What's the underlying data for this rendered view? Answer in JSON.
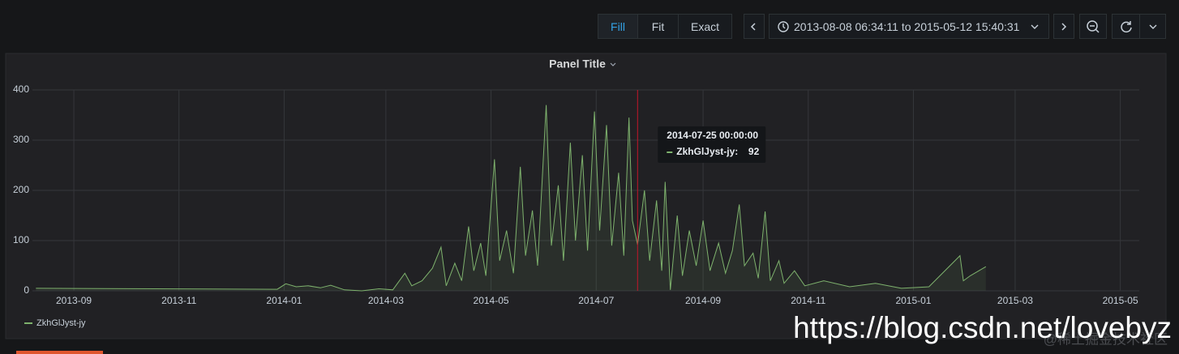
{
  "toolbar": {
    "modes": [
      "Fill",
      "Fit",
      "Exact"
    ],
    "time_range": "2013-08-08 06:34:11 to 2015-05-12 15:40:31"
  },
  "chart_data": {
    "type": "line",
    "title": "Panel Title",
    "x": [
      "2013-08-10",
      "2013-12-28",
      "2014-01-02",
      "2014-01-08",
      "2014-01-15",
      "2014-01-22",
      "2014-01-28",
      "2014-02-05",
      "2014-02-15",
      "2014-02-25",
      "2014-03-05",
      "2014-03-12",
      "2014-03-16",
      "2014-03-22",
      "2014-03-28",
      "2014-04-02",
      "2014-04-05",
      "2014-04-10",
      "2014-04-14",
      "2014-04-18",
      "2014-04-21",
      "2014-04-25",
      "2014-04-28",
      "2014-05-03",
      "2014-05-06",
      "2014-05-10",
      "2014-05-14",
      "2014-05-18",
      "2014-05-21",
      "2014-05-25",
      "2014-05-28",
      "2014-06-02",
      "2014-06-05",
      "2014-06-09",
      "2014-06-12",
      "2014-06-16",
      "2014-06-19",
      "2014-06-23",
      "2014-06-26",
      "2014-06-30",
      "2014-07-03",
      "2014-07-07",
      "2014-07-10",
      "2014-07-14",
      "2014-07-17",
      "2014-07-20",
      "2014-07-22",
      "2014-07-25",
      "2014-07-29",
      "2014-08-01",
      "2014-08-05",
      "2014-08-08",
      "2014-08-10",
      "2014-08-13",
      "2014-08-17",
      "2014-08-20",
      "2014-08-24",
      "2014-08-28",
      "2014-09-01",
      "2014-09-05",
      "2014-09-10",
      "2014-09-14",
      "2014-09-18",
      "2014-09-22",
      "2014-09-25",
      "2014-09-30",
      "2014-10-03",
      "2014-10-07",
      "2014-10-10",
      "2014-10-15",
      "2014-10-18",
      "2014-10-24",
      "2014-10-30",
      "2014-11-10",
      "2014-11-25",
      "2014-12-10",
      "2014-12-25",
      "2015-01-10",
      "2015-01-28",
      "2015-01-30",
      "2015-02-03",
      "2015-02-12"
    ],
    "series": [
      {
        "name": "ZkhGlJyst-jy",
        "color": "#7eb26d",
        "values": [
          5,
          3,
          14,
          8,
          10,
          6,
          11,
          2,
          0,
          4,
          2,
          35,
          10,
          20,
          45,
          87,
          10,
          55,
          20,
          128,
          40,
          95,
          30,
          262,
          60,
          120,
          35,
          247,
          70,
          160,
          50,
          370,
          90,
          210,
          60,
          295,
          100,
          270,
          80,
          357,
          120,
          330,
          90,
          235,
          70,
          345,
          140,
          92,
          200,
          60,
          180,
          40,
          217,
          2,
          150,
          30,
          120,
          50,
          140,
          40,
          95,
          35,
          80,
          172,
          50,
          75,
          25,
          158,
          20,
          60,
          15,
          40,
          10,
          20,
          8,
          15,
          5,
          8,
          70,
          20,
          30,
          48
        ]
      }
    ],
    "xlim": [
      "2013-08-08",
      "2015-05-12"
    ],
    "xticks": [
      {
        "value": "2013-09-01",
        "label": "2013-09"
      },
      {
        "value": "2013-11-01",
        "label": "2013-11"
      },
      {
        "value": "2014-01-01",
        "label": "2014-01"
      },
      {
        "value": "2014-03-01",
        "label": "2014-03"
      },
      {
        "value": "2014-05-01",
        "label": "2014-05"
      },
      {
        "value": "2014-07-01",
        "label": "2014-07"
      },
      {
        "value": "2014-09-01",
        "label": "2014-09"
      },
      {
        "value": "2014-11-01",
        "label": "2014-11"
      },
      {
        "value": "2015-01-01",
        "label": "2015-01"
      },
      {
        "value": "2015-03-01",
        "label": "2015-03"
      },
      {
        "value": "2015-05-01",
        "label": "2015-05"
      }
    ],
    "ylim": [
      0,
      400
    ],
    "yticks": [
      0,
      100,
      200,
      300,
      400
    ],
    "grid": true,
    "tooltip": {
      "time": "2014-07-25 00:00:00",
      "label": "ZkhGlJyst-jy:",
      "x": "2014-07-25"
    }
  },
  "watermark": {
    "url": "https://blog.csdn.net/lovebyz",
    "source": "@稀土掘金技术社区"
  }
}
